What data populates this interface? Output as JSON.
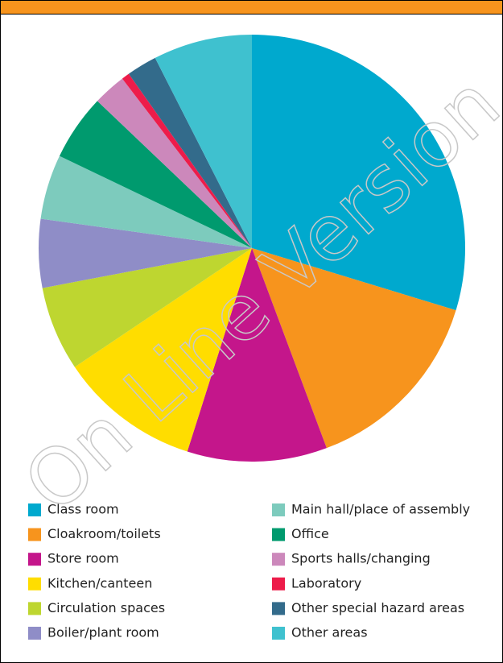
{
  "chart_data": {
    "type": "pie",
    "categories": [
      "Class room",
      "Cloakroom/toilets",
      "Store room",
      "Kitchen/canteen",
      "Circulation spaces",
      "Boiler/plant room",
      "Main hall/place of assembly",
      "Office",
      "Sports halls/changing",
      "Laboratory",
      "Other special hazard areas",
      "Other areas"
    ],
    "values": [
      29.7,
      14.6,
      10.6,
      10.7,
      6.4,
      5.2,
      4.9,
      5.0,
      2.5,
      0.6,
      2.3,
      7.5
    ],
    "colors": [
      "#00a9ce",
      "#f7941d",
      "#c4168b",
      "#ffdd00",
      "#bed630",
      "#8f8dc7",
      "#7dcbbd",
      "#009a6e",
      "#cc88bb",
      "#ed1c4a",
      "#336b8b",
      "#3fc1cf"
    ],
    "watermark": "On Line Version"
  }
}
